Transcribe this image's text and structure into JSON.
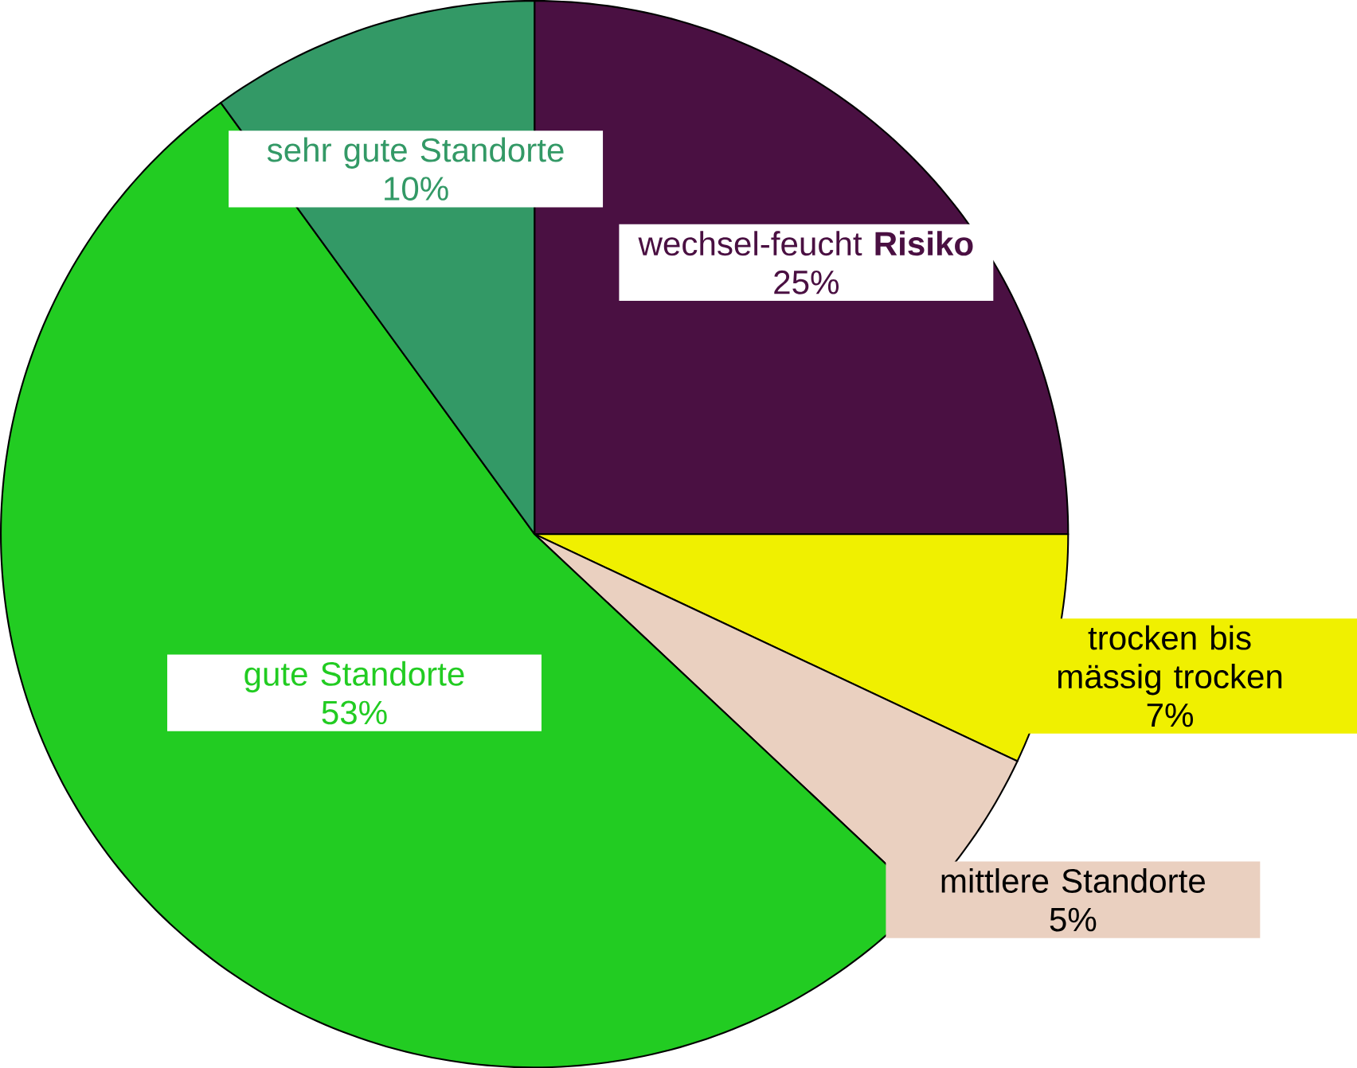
{
  "chart_data": {
    "type": "pie",
    "categories": [
      "wechsel-feucht **Risiko**",
      "trocken bis mässig trocken",
      "mittlere Standorte",
      "gute Standorte",
      "sehr gute Standorte"
    ],
    "values": [
      25,
      7,
      5,
      53,
      10
    ],
    "value_labels": [
      "25%",
      "7%",
      "5%",
      "53%",
      "10%"
    ],
    "colors": [
      "#4a1042",
      "#f0f000",
      "#ead0c0",
      "#22cc22",
      "#339966"
    ]
  }
}
